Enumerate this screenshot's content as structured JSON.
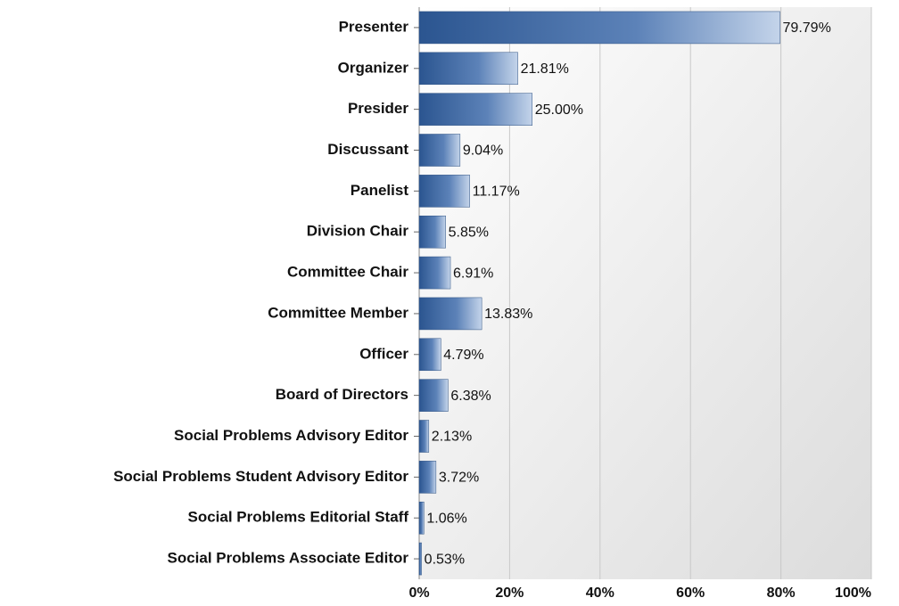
{
  "chart_data": {
    "type": "bar",
    "orientation": "horizontal",
    "categories": [
      "Presenter",
      "Organizer",
      "Presider",
      "Discussant",
      "Panelist",
      "Division Chair",
      "Committee Chair",
      "Committee Member",
      "Officer",
      "Board of Directors",
      "Social Problems Advisory Editor",
      "Social Problems Student Advisory Editor",
      "Social Problems Editorial Staff",
      "Social Problems Associate Editor"
    ],
    "values": [
      79.79,
      21.81,
      25.0,
      9.04,
      11.17,
      5.85,
      6.91,
      13.83,
      4.79,
      6.38,
      2.13,
      3.72,
      1.06,
      0.53
    ],
    "value_labels": [
      "79.79%",
      "21.81%",
      "25.00%",
      "9.04%",
      "11.17%",
      "5.85%",
      "6.91%",
      "13.83%",
      "4.79%",
      "6.38%",
      "2.13%",
      "3.72%",
      "1.06%",
      "0.53%"
    ],
    "color": "#2f5a94",
    "xlim": [
      0,
      100
    ],
    "xticks": [
      {
        "value": 0,
        "label": "0%"
      },
      {
        "value": 20,
        "label": "20%"
      },
      {
        "value": 40,
        "label": "40%"
      },
      {
        "value": 60,
        "label": "60%"
      },
      {
        "value": 80,
        "label": "80%"
      },
      {
        "value": 100,
        "label": "100%"
      }
    ],
    "grid": true
  }
}
